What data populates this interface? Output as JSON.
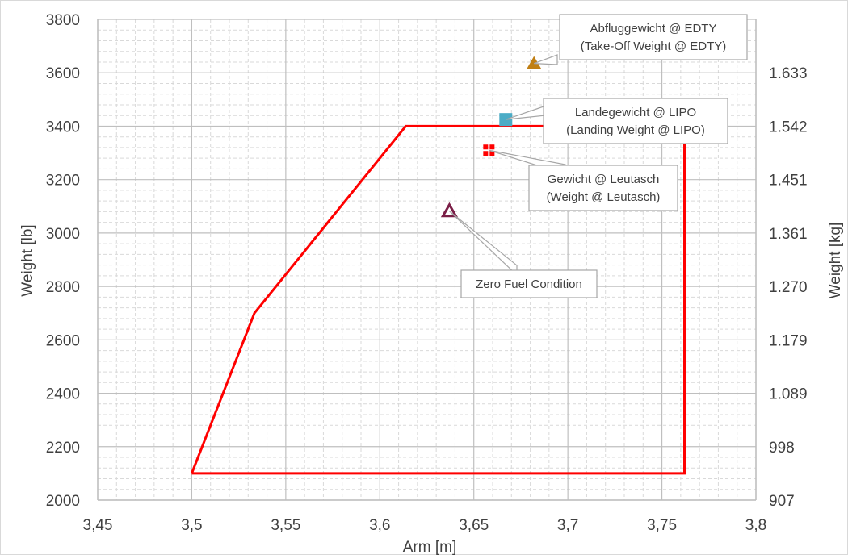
{
  "chart_data": {
    "type": "scatter",
    "xlabel": "Arm [m]",
    "ylabel": "Weight [lb]",
    "y2label": "Weight [kg]",
    "xlim": [
      3.45,
      3.8
    ],
    "ylim": [
      2000,
      3800
    ],
    "x_ticks": [
      "3,45",
      "3,5",
      "3,55",
      "3,6",
      "3,65",
      "3,7",
      "3,75",
      "3,8"
    ],
    "y_ticks": [
      "2000",
      "2200",
      "2400",
      "2600",
      "2800",
      "3000",
      "3200",
      "3400",
      "3600",
      "3800"
    ],
    "y2_ticks": [
      {
        "lb": 2000,
        "label": "907"
      },
      {
        "lb": 2200,
        "label": "998"
      },
      {
        "lb": 2400,
        "label": "1.089"
      },
      {
        "lb": 2600,
        "label": "1.179"
      },
      {
        "lb": 2800,
        "label": "1.270"
      },
      {
        "lb": 3000,
        "label": "1.361"
      },
      {
        "lb": 3200,
        "label": "1.451"
      },
      {
        "lb": 3400,
        "label": "1.542"
      },
      {
        "lb": 3600,
        "label": "1.633"
      }
    ],
    "grid": true,
    "colors": {
      "envelope": "#ff0000",
      "takeoff": "#c07f14",
      "landing": "#4bacc6",
      "leutasch": "#ff0000",
      "zerofuel": "#7b1f47",
      "grid": "#d9d9d9",
      "minor_grid": "#d9d9d9"
    },
    "envelope": {
      "x": [
        3.5,
        3.5333,
        3.6138,
        3.762,
        3.762,
        3.5
      ],
      "y": [
        2100,
        2700,
        3400,
        3400,
        2100,
        2100
      ]
    },
    "points": [
      {
        "x": 3.682,
        "y": 3635,
        "marker": "triangle",
        "color": "#c07f14",
        "label_lines": [
          "Abfluggewicht @ EDTY",
          "(Take-Off Weight @ EDTY)"
        ]
      },
      {
        "x": 3.667,
        "y": 3425,
        "marker": "square",
        "color": "#4bacc6",
        "label_lines": [
          "Landegewicht @ LIPO",
          "(Landing Weight @ LIPO)"
        ]
      },
      {
        "x": 3.658,
        "y": 3310,
        "marker": "cross",
        "color": "#ff0000",
        "label_lines": [
          "Gewicht @ Leutasch",
          "(Weight @ Leutasch)"
        ]
      },
      {
        "x": 3.637,
        "y": 3082,
        "marker": "triangle-open",
        "color": "#7b1f47",
        "label_lines": [
          "Zero Fuel Condition"
        ]
      }
    ]
  }
}
